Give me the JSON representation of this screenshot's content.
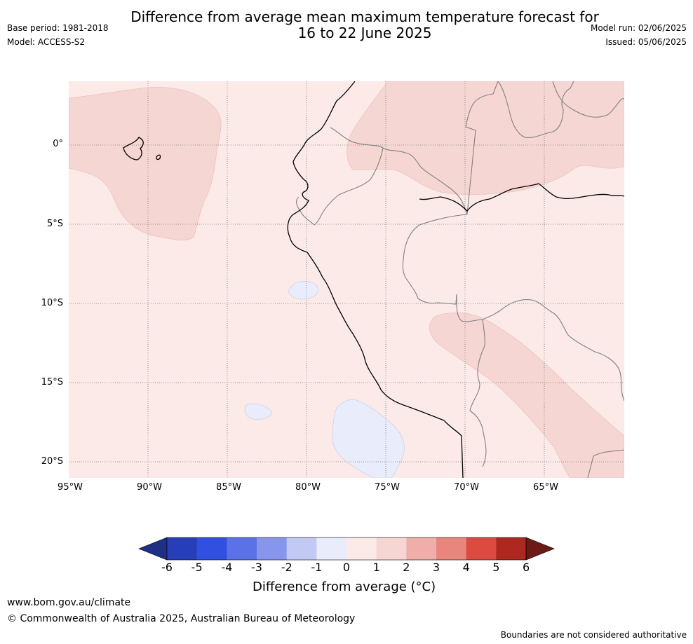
{
  "title": {
    "line1": "Difference from average mean maximum temperature forecast for",
    "line2": "16 to 22 June 2025"
  },
  "meta": {
    "base_period": "Base period: 1981-2018",
    "model": "Model: ACCESS-S2",
    "model_run": "Model run: 02/06/2025",
    "issued": "Issued: 05/06/2025"
  },
  "map": {
    "lat_labels": [
      "0°",
      "5°S",
      "10°S",
      "15°S",
      "20°S"
    ],
    "lon_labels": [
      "95°W",
      "90°W",
      "85°W",
      "80°W",
      "75°W",
      "70°W",
      "65°W"
    ],
    "background_color": "#fbeae8",
    "warm_color": "#f5d6d3",
    "cool_color": "#e9ecfa"
  },
  "colorbar": {
    "ticks": [
      "-6",
      "-5",
      "-4",
      "-3",
      "-2",
      "-1",
      "0",
      "1",
      "2",
      "3",
      "4",
      "5",
      "6"
    ],
    "colors": [
      "#1f2f86",
      "#263eb8",
      "#3250e0",
      "#5a72e6",
      "#8796ec",
      "#c2c9f4",
      "#e9ecfa",
      "#fbeae8",
      "#f5d6d3",
      "#efaea9",
      "#e8867e",
      "#db4b40",
      "#ad2920",
      "#6d1a16"
    ],
    "title": "Difference from average (°C)"
  },
  "footer": {
    "url": "www.bom.gov.au/climate",
    "copyright": "© Commonwealth of Australia 2025, Australian Bureau of Meteorology",
    "disclaimer": "Boundaries are not considered authoritative"
  }
}
